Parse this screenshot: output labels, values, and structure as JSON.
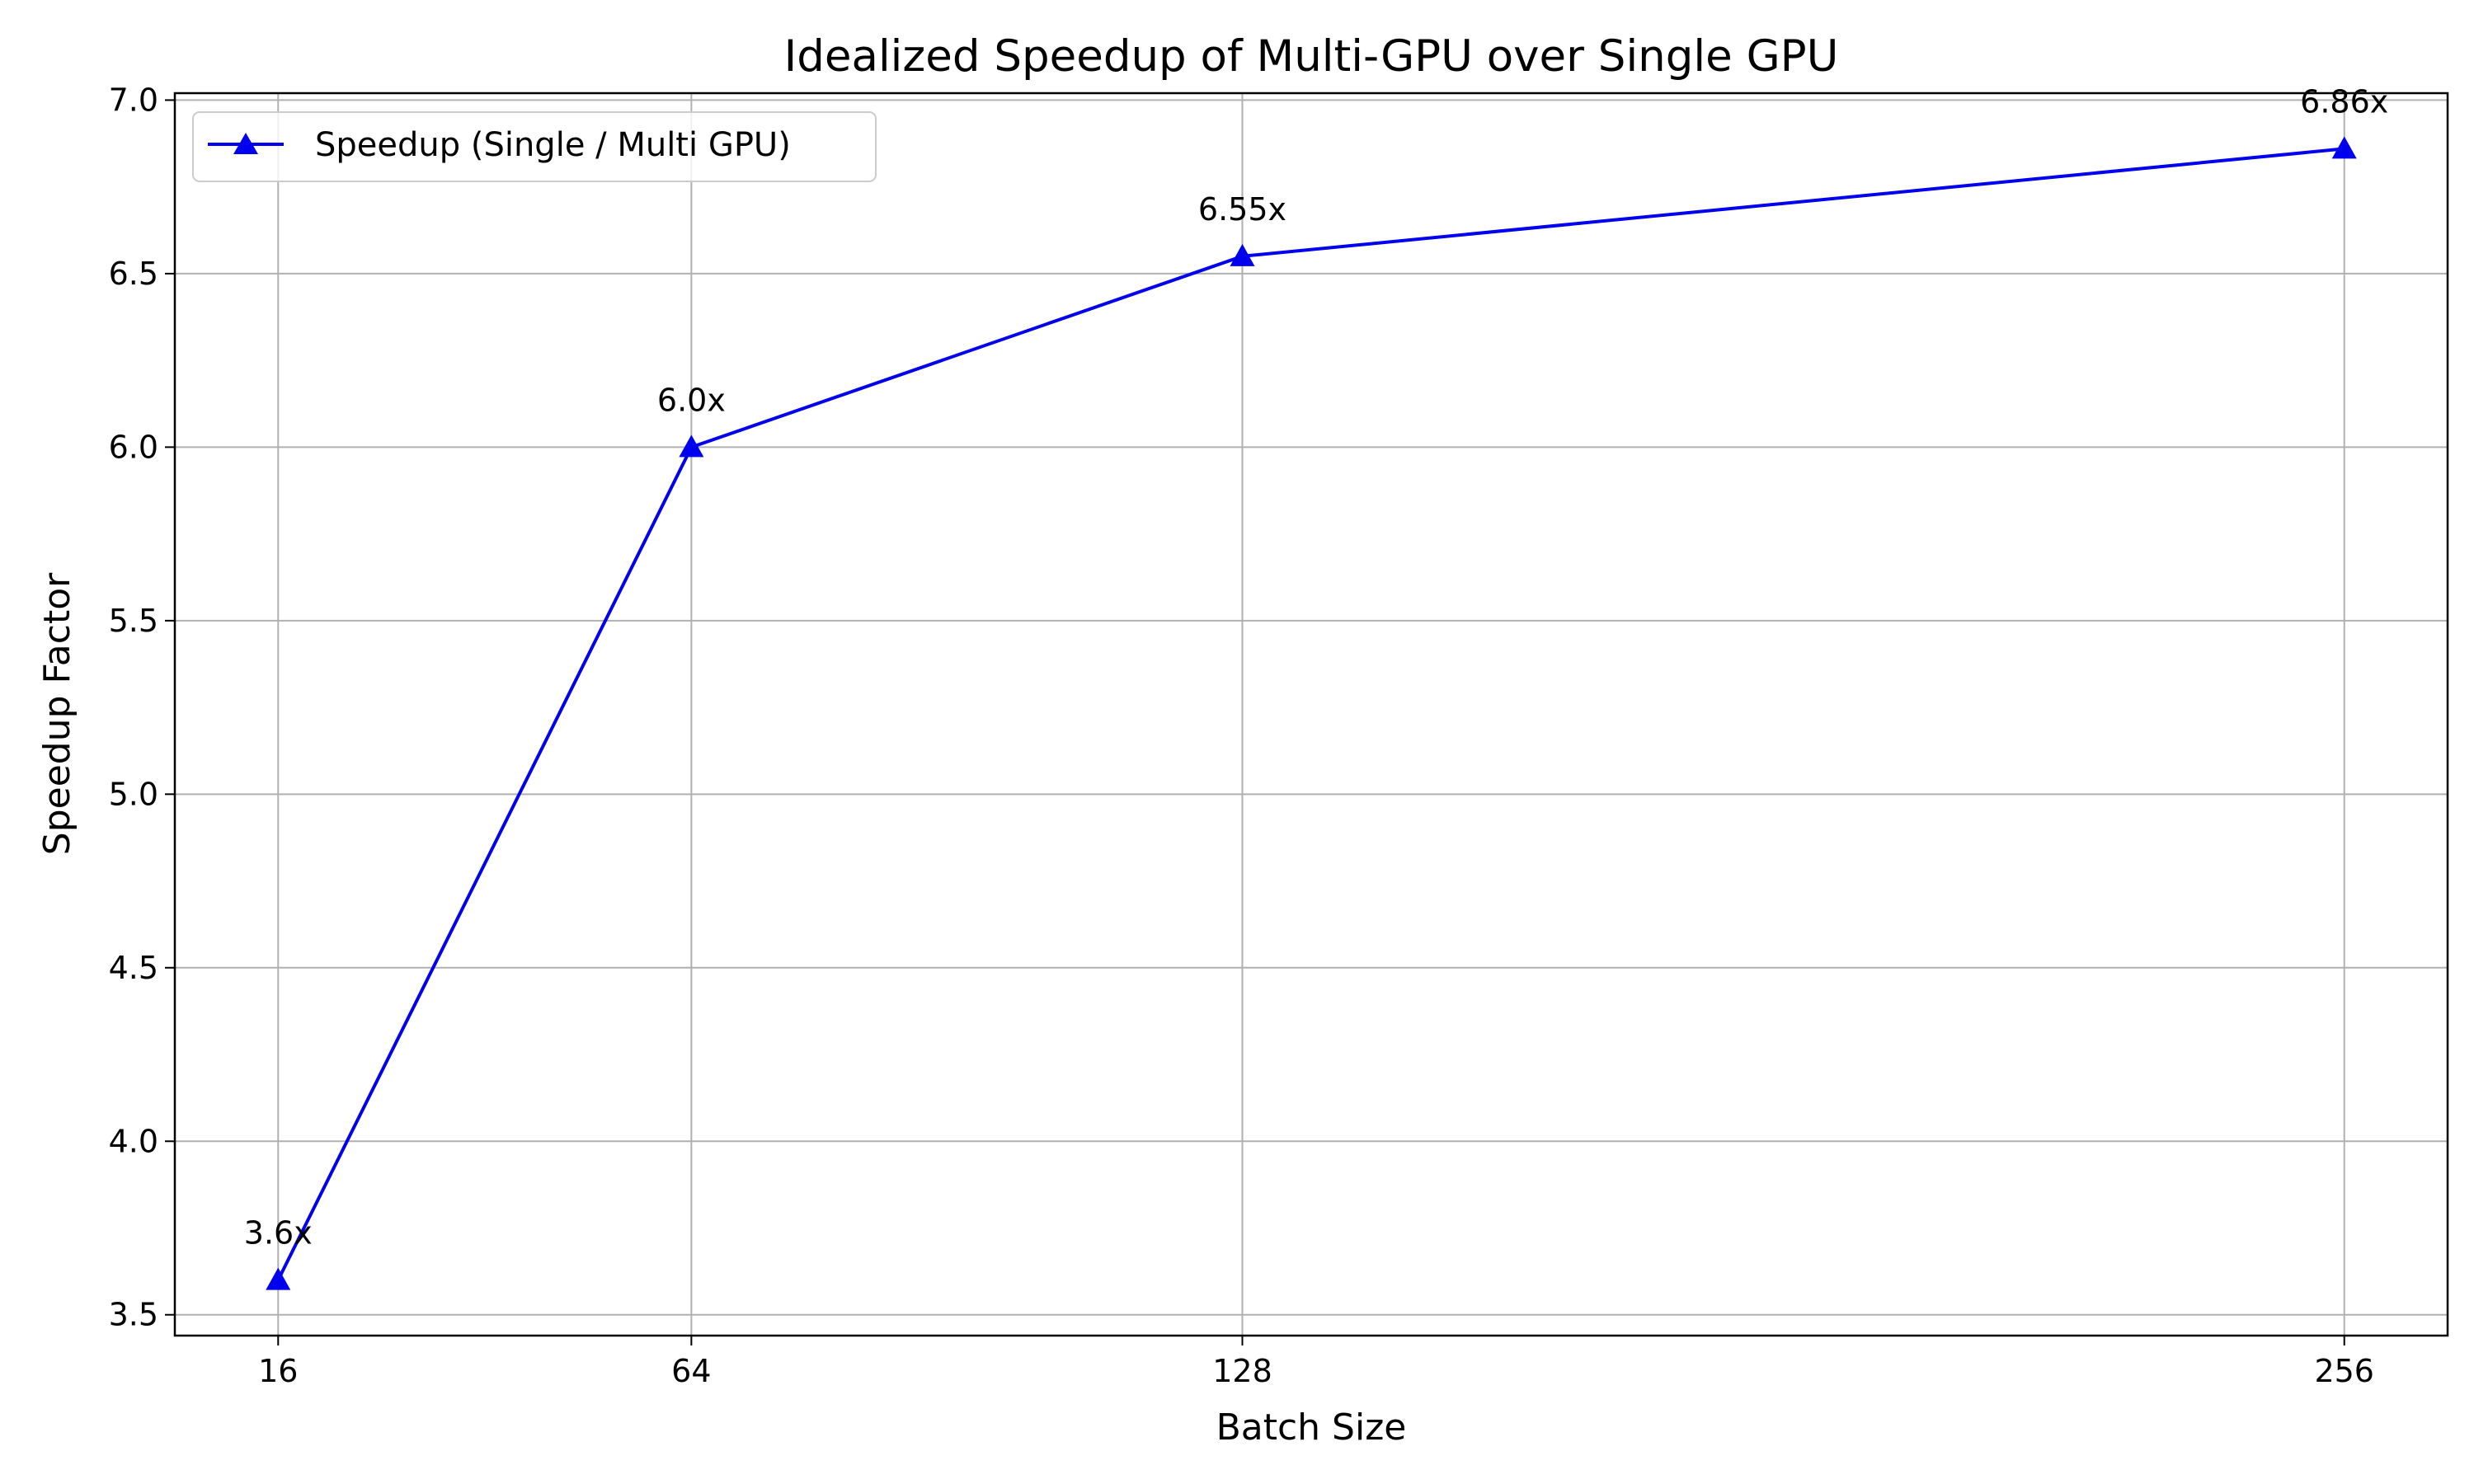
{
  "chart_data": {
    "type": "line",
    "title": "Idealized Speedup of Multi-GPU over Single GPU",
    "xlabel": "Batch Size",
    "ylabel": "Speedup Factor",
    "x": [
      16,
      64,
      128,
      256
    ],
    "x_tick_labels": [
      "16",
      "64",
      "128",
      "256"
    ],
    "xlim": [
      4,
      268
    ],
    "ylim": [
      3.44,
      7.02
    ],
    "y_ticks": [
      3.5,
      4.0,
      4.5,
      5.0,
      5.5,
      6.0,
      6.5,
      7.0
    ],
    "y_tick_labels": [
      "3.5",
      "4.0",
      "4.5",
      "5.0",
      "5.5",
      "6.0",
      "6.5",
      "7.0"
    ],
    "grid": true,
    "legend_position": "top-left",
    "series": [
      {
        "name": "Speedup (Single / Multi GPU)",
        "values": [
          3.6,
          6.0,
          6.55,
          6.86
        ],
        "annotations": [
          "3.6x",
          "6.0x",
          "6.55x",
          "6.86x"
        ],
        "marker": "triangle-up",
        "color": "#0000ee"
      }
    ]
  }
}
